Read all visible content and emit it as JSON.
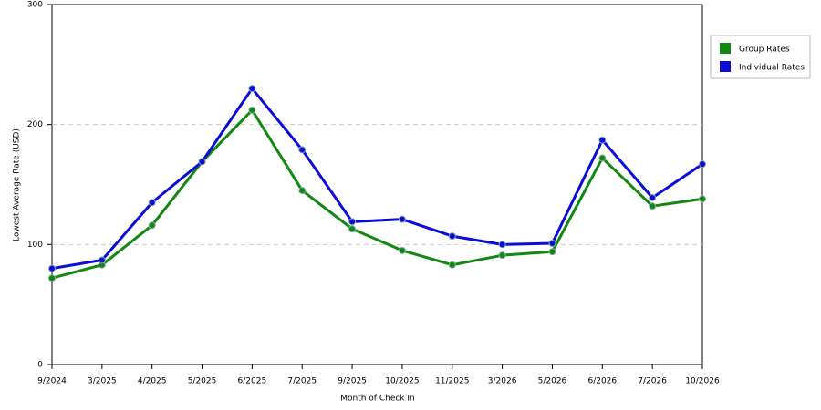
{
  "chart_data": {
    "type": "line",
    "x_label": "Month of Check In",
    "y_label": "Lowest Average Rate (USD)",
    "categories": [
      "9/2024",
      "3/2025",
      "4/2025",
      "5/2025",
      "6/2025",
      "7/2025",
      "9/2025",
      "10/2025",
      "11/2025",
      "3/2026",
      "5/2026",
      "6/2026",
      "7/2026",
      "10/2026"
    ],
    "series": [
      {
        "name": "Group Rates",
        "color": "#118811",
        "values": [
          72,
          83,
          116,
          169,
          212,
          145,
          113,
          95,
          83,
          91,
          94,
          172,
          132,
          138
        ]
      },
      {
        "name": "Individual Rates",
        "color": "#0c0cd8",
        "values": [
          80,
          87,
          135,
          169,
          230,
          179,
          119,
          121,
          107,
          100,
          101,
          187,
          139,
          167
        ]
      }
    ],
    "ylim": [
      0,
      300
    ],
    "yticks": [
      0,
      100,
      200,
      300
    ],
    "grid": true,
    "legend": "right"
  }
}
